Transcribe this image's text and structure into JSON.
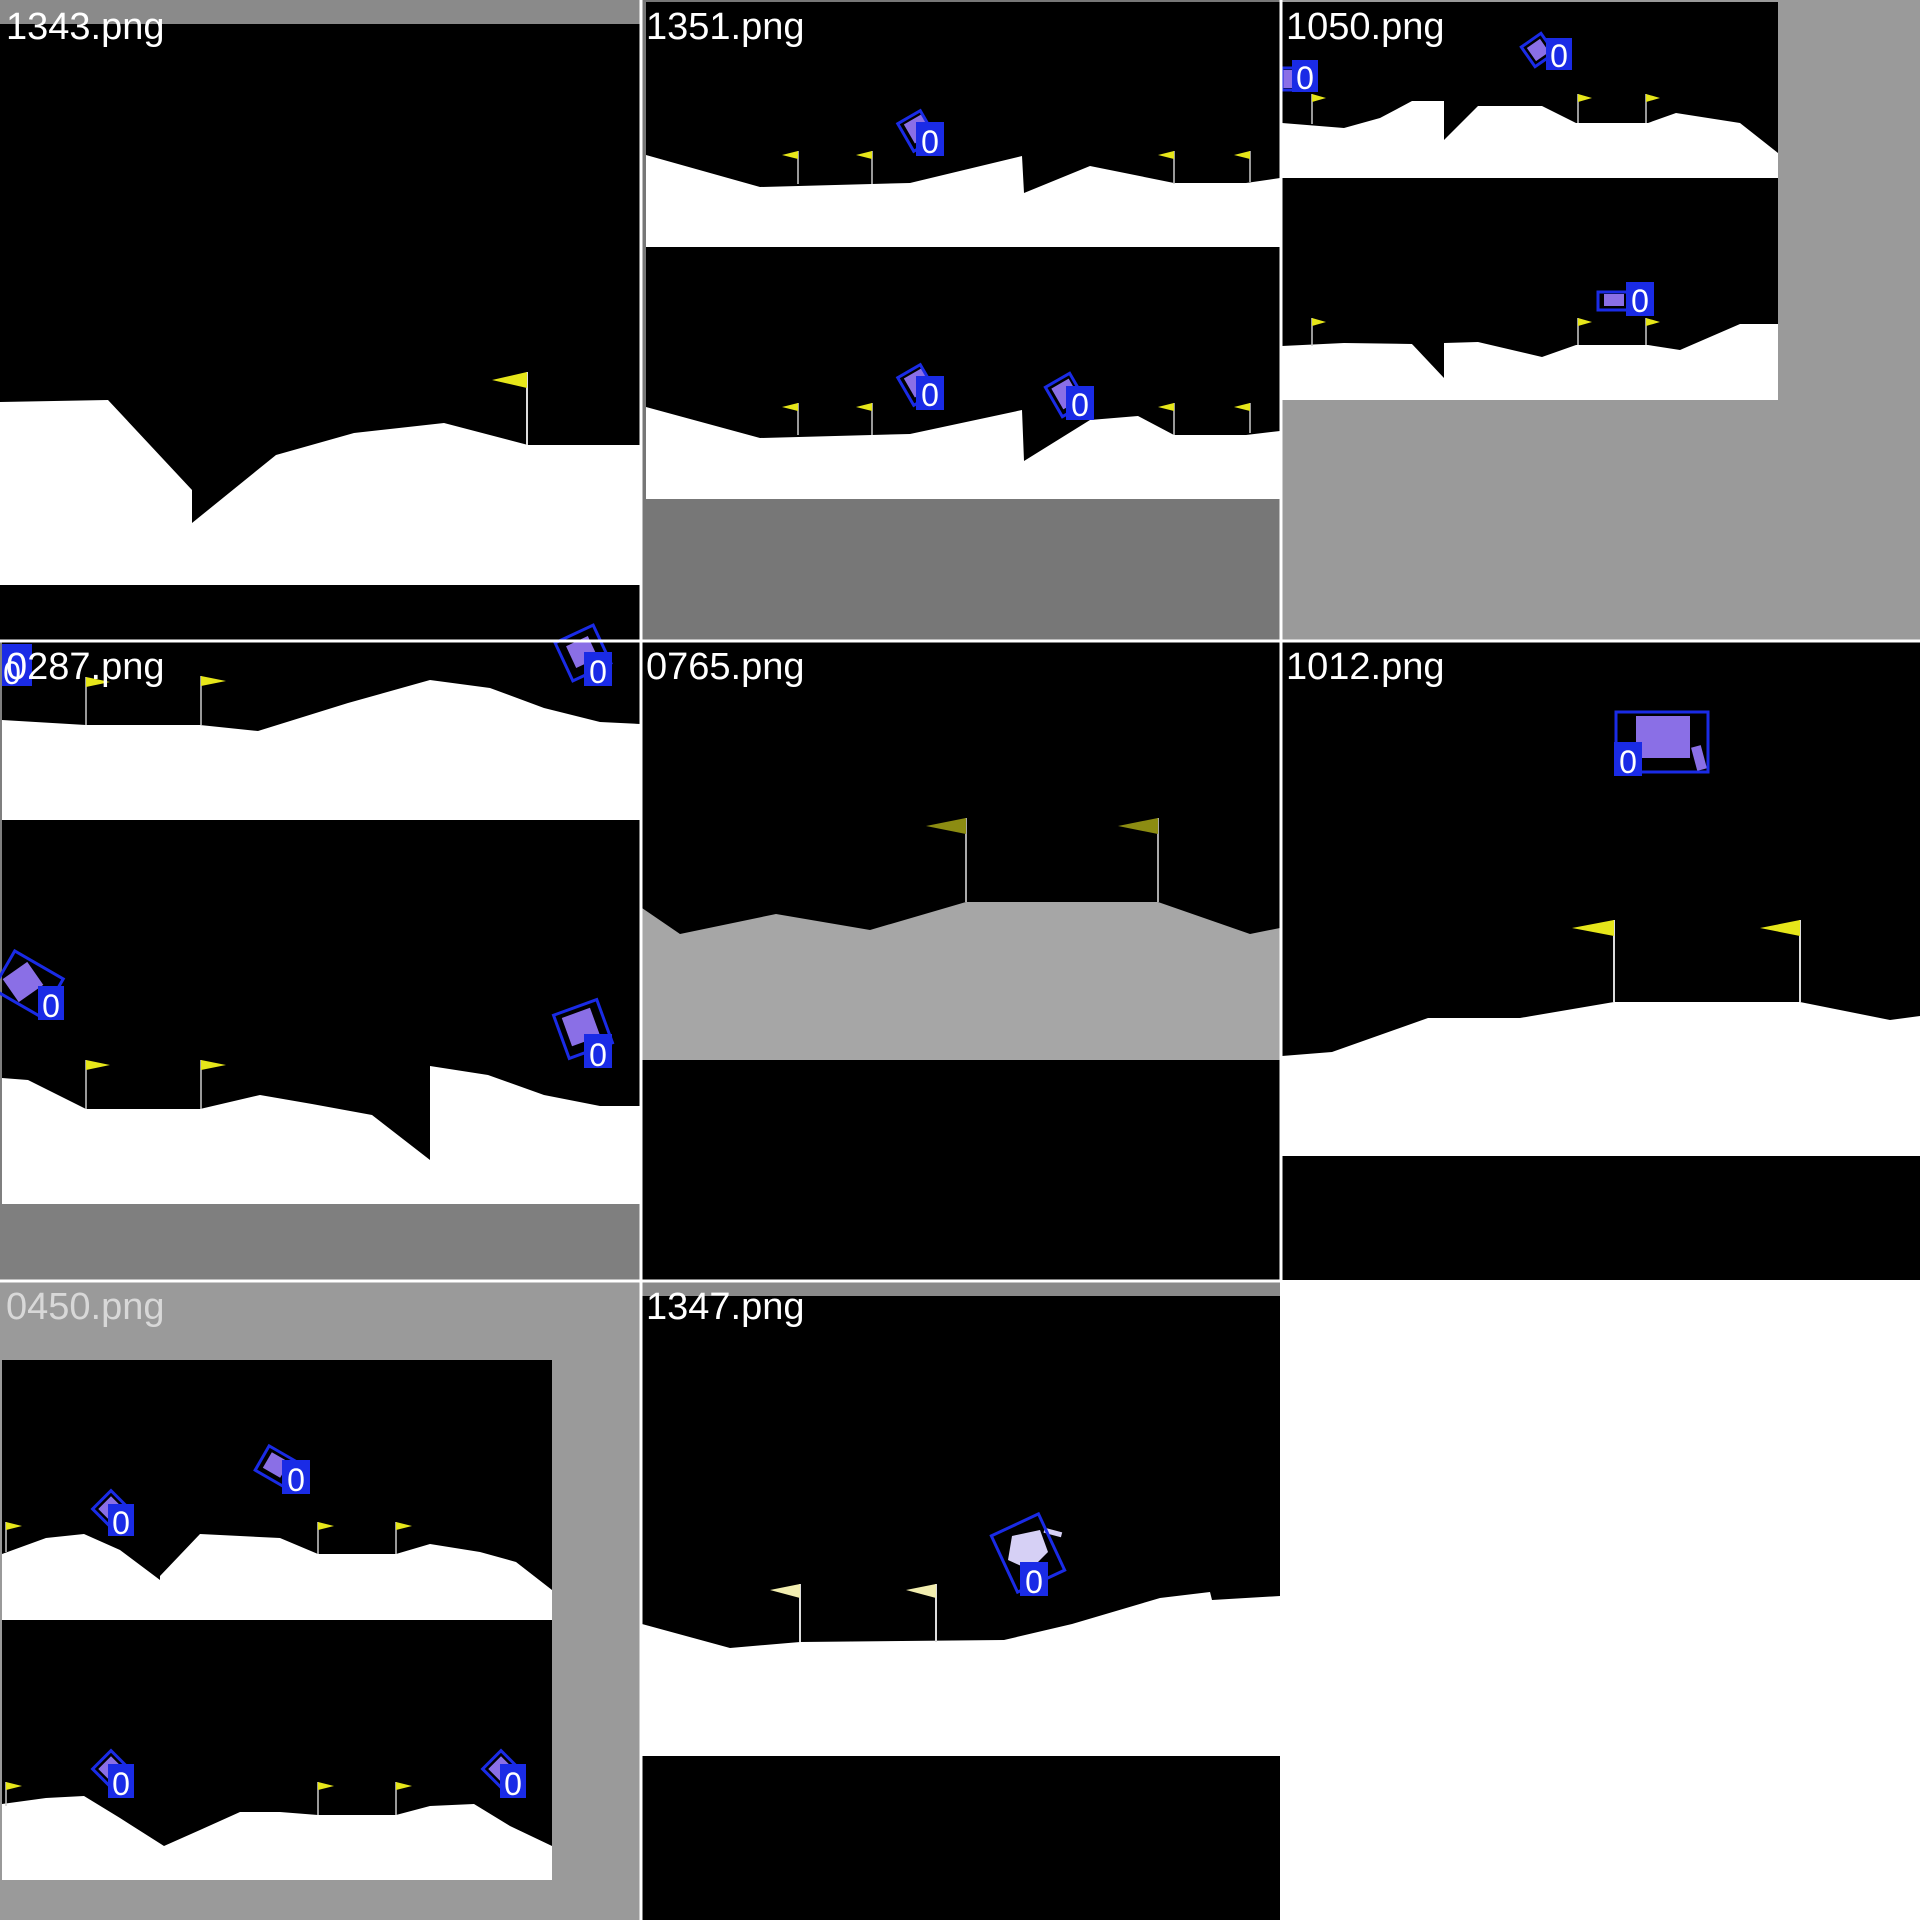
{
  "tiles": [
    {
      "filename": "1343.png"
    },
    {
      "filename": "1351.png"
    },
    {
      "filename": "1050.png"
    },
    {
      "filename": "0287.png"
    },
    {
      "filename": "0765.png"
    },
    {
      "filename": "1012.png"
    },
    {
      "filename": "0450.png"
    },
    {
      "filename": "1347.png"
    }
  ],
  "detection_class_label": "0",
  "colors": {
    "sky": "#000000",
    "ground": "#ffffff",
    "ground_dim": "#a6a6a6",
    "padding_gray": "#9a9a9a",
    "padding_dark_gray": "#777777",
    "flag_yellow": "#e6e61a",
    "flag_olive": "#8c8c12",
    "lander": "#8a6fe6",
    "lander_pale": "#d6d0f5",
    "bbox_blue": "#1a2be6",
    "label_text": "#ffffff",
    "separator": "#ffffff"
  }
}
